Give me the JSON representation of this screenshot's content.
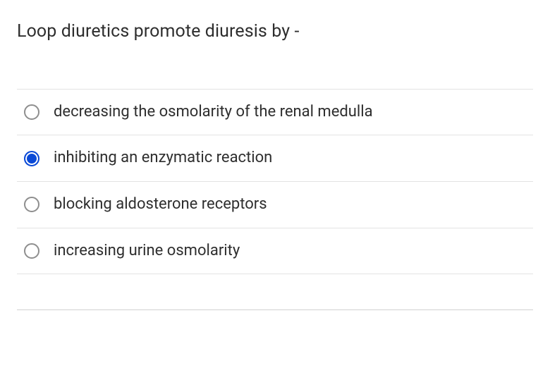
{
  "question": {
    "text": "Loop diuretics promote diuresis by -"
  },
  "options": [
    {
      "label": "decreasing the osmolarity of the renal medulla",
      "selected": false
    },
    {
      "label": "inhibiting an enzymatic reaction",
      "selected": true
    },
    {
      "label": "blocking aldosterone receptors",
      "selected": false
    },
    {
      "label": "increasing urine osmolarity",
      "selected": false
    }
  ],
  "colors": {
    "text": "#2e2e2e",
    "divider": "#e3e3e3",
    "radio_border": "#8e8e8e",
    "radio_selected": "#0a49d6",
    "background": "#ffffff",
    "bottom_rule": "#d2d2d2"
  },
  "typography": {
    "question_fontsize": 25,
    "option_fontsize": 22,
    "font_weight": 400
  }
}
